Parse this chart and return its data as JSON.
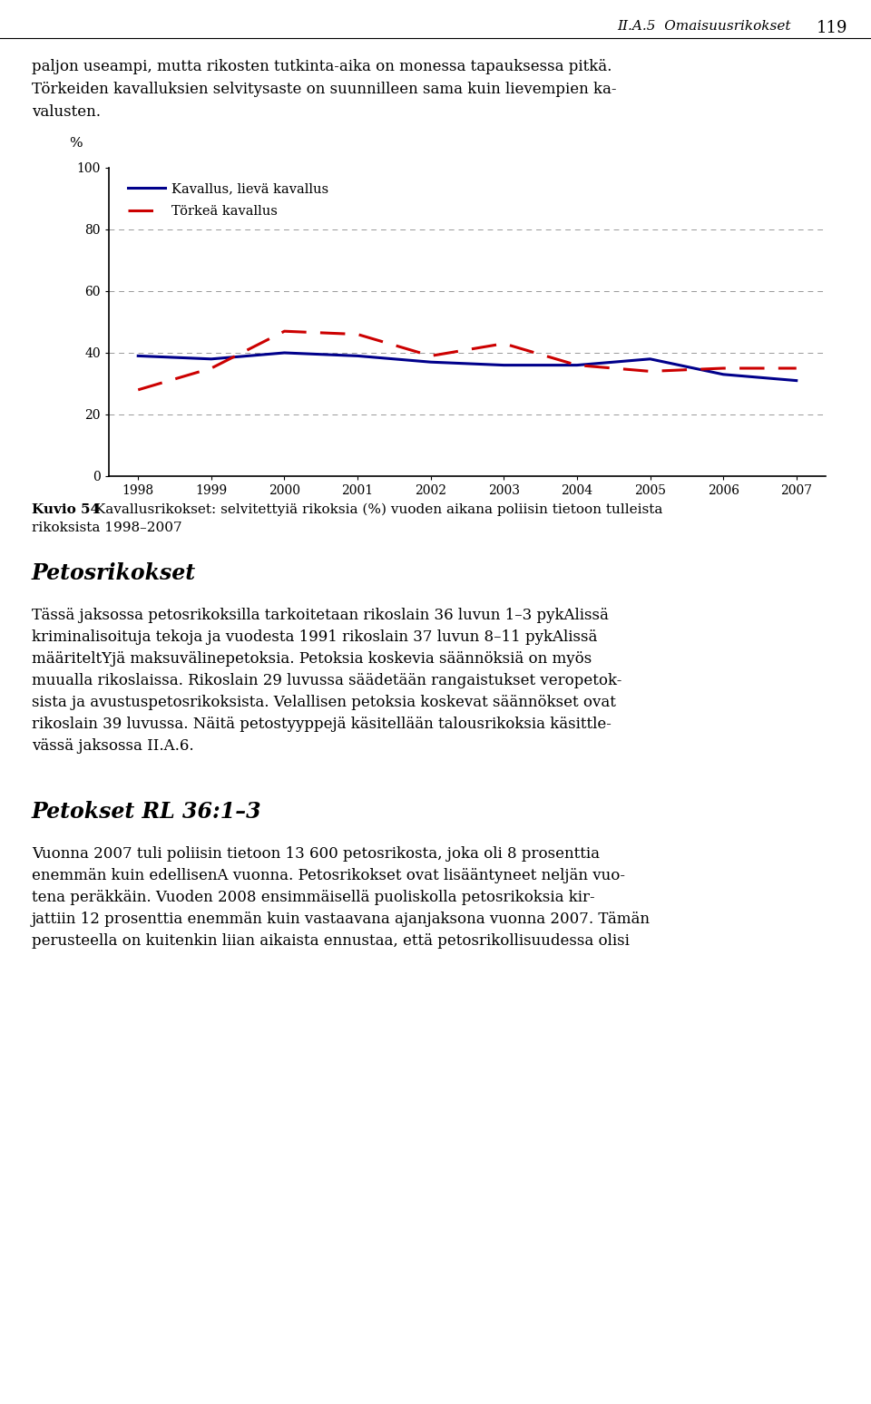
{
  "years": [
    1998,
    1999,
    2000,
    2001,
    2002,
    2003,
    2004,
    2005,
    2006,
    2007
  ],
  "line1": [
    39,
    38,
    40,
    39,
    37,
    36,
    36,
    38,
    33,
    31
  ],
  "line2": [
    28,
    35,
    47,
    46,
    39,
    43,
    36,
    34,
    35,
    35
  ],
  "line1_label": "Kavallus, lievä kavallus",
  "line2_label": "Törkeä kavallus",
  "line1_color": "#00008B",
  "line2_color": "#CC0000",
  "ylim": [
    0,
    100
  ],
  "yticks": [
    0,
    20,
    40,
    60,
    80,
    100
  ],
  "header_text": "II.A.5  Omaisuusrikokset",
  "page_number": "119",
  "para1_line1": "paljon useampi, mutta rikosten tutkinta-aika on monessa tapauksessa pitkä.",
  "para1_line2": "Törkeiden kavalluksien selvitysaste on suunnilleen sama kuin lievempien ka-",
  "para1_line3": "valusten.",
  "caption_bold": "Kuvio 54",
  "caption_rest": " Kavallusrikokset: selvitettyiä rikoksia (%) vuoden aikana poliisin tietoon tulleista rikoksista 1998–2007",
  "section1_title": "Petosrikokset",
  "section1_body": "Tässä jaksossa petosrikoksilla tarkoitetaan rikoslain 36 luvun 1–3 pykAlissä kriminalisoituja tekoja ja vuodesta 1991 rikoslain 37 luvun 8–11 pykAlissä määriteltYjä maksuvälinepetoksia. Petoksia koskevia säännöksiä on myös muualla rikoslaissa. Rikoslain 29 luvussa säädetään rangaistukset veropetok-sista ja avustuspetosrikoksista. Velallisen petoksia koskevat säännökset ovat rikoslain 39 luvussa. Näitä petostyyppejä käsitellään talousrikoksia käsittle-vässä jaksossa II.A.6.",
  "section2_title": "Petokset RL 36:1–3",
  "section2_body": "Vuonna 2007 tuli poliisin tietoon 13 600 petosrikosta, joka oli 8 prosenttia enemmAn kuin edellisenA vuonna. Petosrikokset ovat lisääntyneet neljän vuotena peräkkäin. Vuoden 2008 ensimmäisellä puoliskolla petosrikoksia kir-jattiin 12 prosenttia enemmän kuin vastaavana ajanjaksona vuonna 2007. Tämän perusteella on kuitenkin liian aikaista ennustaa, että petosrikollisuudessa olisi"
}
